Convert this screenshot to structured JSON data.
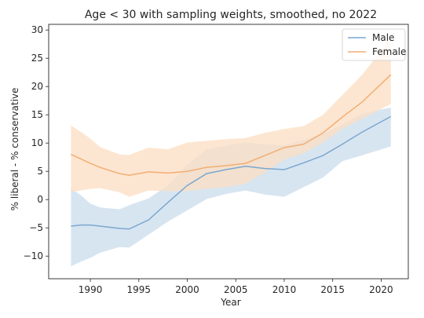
{
  "chart_data": {
    "type": "line",
    "title": "Age < 30 with sampling weights, smoothed, no 2022",
    "xlabel": "Year",
    "ylabel": "% liberal - % conservative",
    "xlim": [
      1985.7,
      2022.8
    ],
    "ylim": [
      -14,
      31
    ],
    "xticks": [
      1990,
      1995,
      2000,
      2005,
      2010,
      2015,
      2020
    ],
    "yticks": [
      -10,
      -5,
      0,
      5,
      10,
      15,
      20,
      25,
      30
    ],
    "grid": false,
    "legend_position": "top-right",
    "series": [
      {
        "name": "Male",
        "color": "#7ca7cf",
        "band_color": "#c9dcec",
        "x": [
          1988,
          1989,
          1990,
          1991,
          1993,
          1994,
          1996,
          1998,
          2000,
          2002,
          2004,
          2006,
          2008,
          2010,
          2012,
          2014,
          2016,
          2018,
          2021
        ],
        "y": [
          -4.7,
          -4.5,
          -4.5,
          -4.7,
          -5.1,
          -5.2,
          -3.6,
          -0.5,
          2.5,
          4.6,
          5.3,
          5.9,
          5.5,
          5.3,
          6.5,
          7.8,
          9.8,
          11.9,
          14.7
        ],
        "lower": [
          -11.8,
          -11.0,
          -10.3,
          -9.4,
          -8.4,
          -8.5,
          -6.2,
          -3.9,
          -1.9,
          0.1,
          1.0,
          1.6,
          0.9,
          0.5,
          2.2,
          3.9,
          6.8,
          7.8,
          9.4
        ],
        "upper": [
          2.0,
          0.8,
          -0.7,
          -1.4,
          -1.7,
          -1.0,
          0.2,
          2.5,
          6.2,
          8.9,
          9.5,
          10.1,
          9.8,
          9.6,
          10.6,
          11.6,
          13.3,
          15.2,
          16.3
        ]
      },
      {
        "name": "Female",
        "color": "#f2ae72",
        "band_color": "#fcddc1",
        "x": [
          1988,
          1989,
          1990,
          1991,
          1993,
          1994,
          1996,
          1998,
          2000,
          2002,
          2004,
          2006,
          2008,
          2010,
          2012,
          2014,
          2016,
          2018,
          2021
        ],
        "y": [
          8.0,
          7.2,
          6.4,
          5.7,
          4.6,
          4.3,
          4.9,
          4.7,
          5.0,
          5.7,
          6.0,
          6.4,
          7.8,
          9.2,
          9.8,
          11.8,
          14.6,
          17.2,
          22.1
        ],
        "lower": [
          1.3,
          1.6,
          1.9,
          2.0,
          1.3,
          0.5,
          1.6,
          1.5,
          1.5,
          1.9,
          2.2,
          2.8,
          4.8,
          7.1,
          8.2,
          10.1,
          12.5,
          14.3,
          16.9
        ],
        "upper": [
          13.1,
          12.0,
          10.8,
          9.3,
          8.0,
          7.9,
          9.2,
          8.9,
          10.1,
          10.4,
          10.7,
          10.9,
          11.8,
          12.5,
          13.0,
          15.0,
          18.5,
          22.0,
          28.5
        ]
      }
    ]
  }
}
